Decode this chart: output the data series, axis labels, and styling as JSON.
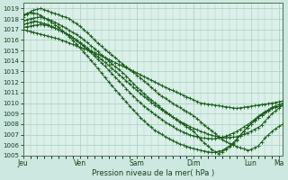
{
  "bg_color": "#cce8e0",
  "plot_bg_color": "#daf0e8",
  "grid_color": "#a8ccc4",
  "line_color": "#1a5c1a",
  "marker_color": "#1a5c1a",
  "ylim": [
    1005,
    1019.5
  ],
  "yticks": [
    1005,
    1006,
    1007,
    1008,
    1009,
    1010,
    1011,
    1012,
    1013,
    1014,
    1015,
    1016,
    1017,
    1018,
    1019
  ],
  "xlabel": "Pression niveau de la mer( hPa )",
  "xtick_labels": [
    "Jeu",
    "Ven",
    "Sam",
    "Dim",
    "Lun",
    "Ma"
  ],
  "xtick_positions": [
    0,
    48,
    96,
    144,
    192,
    216
  ],
  "num_points": 220
}
